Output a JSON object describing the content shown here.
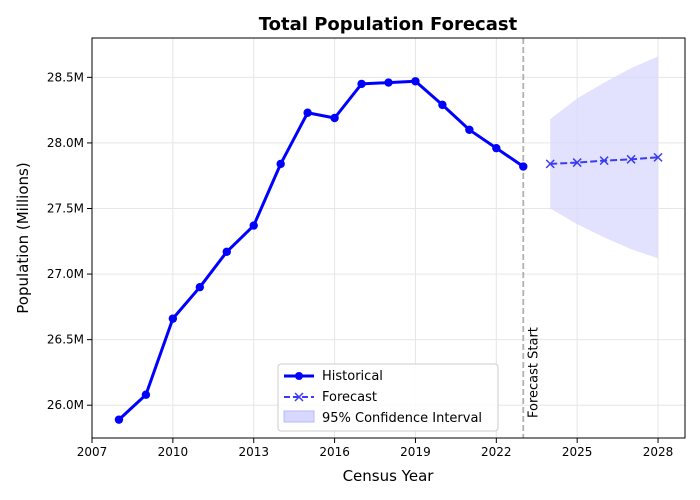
{
  "chart_data": {
    "type": "line",
    "title": "Total Population Forecast",
    "xlabel": "Census Year",
    "ylabel": "Population (Millions)",
    "xlim": [
      2007,
      2029
    ],
    "ylim": [
      25.75,
      28.8
    ],
    "xticks": [
      2007,
      2010,
      2013,
      2016,
      2019,
      2022,
      2025,
      2028
    ],
    "yticks": [
      26.0,
      26.5,
      27.0,
      27.5,
      28.0,
      28.5
    ],
    "ytick_labels": [
      "26.0M",
      "26.5M",
      "27.0M",
      "27.5M",
      "28.0M",
      "28.5M"
    ],
    "grid": true,
    "legend_position": "bottom-center",
    "series": [
      {
        "name": "Historical",
        "style": "solid",
        "marker": "circle",
        "color": "#0000ff",
        "x": [
          2008,
          2009,
          2010,
          2011,
          2012,
          2013,
          2014,
          2015,
          2016,
          2017,
          2018,
          2019,
          2020,
          2021,
          2022,
          2023
        ],
        "y": [
          25.89,
          26.08,
          26.66,
          26.9,
          27.17,
          27.37,
          27.84,
          28.23,
          28.19,
          28.45,
          28.46,
          28.47,
          28.29,
          28.1,
          27.96,
          27.82
        ]
      },
      {
        "name": "Forecast",
        "style": "dashed",
        "marker": "x",
        "color": "#3b3bf0",
        "x": [
          2024,
          2025,
          2026,
          2027,
          2028
        ],
        "y": [
          27.84,
          27.85,
          27.865,
          27.875,
          27.89
        ]
      }
    ],
    "confidence_interval": {
      "name": "95% Confidence Interval",
      "color": "#d8d8ff",
      "x": [
        2024,
        2025,
        2026,
        2027,
        2028
      ],
      "lower": [
        27.5,
        27.38,
        27.28,
        27.19,
        27.12
      ],
      "upper": [
        28.18,
        28.34,
        28.46,
        28.57,
        28.66
      ]
    },
    "annotation": {
      "text": "Forecast Start",
      "x": 2023,
      "color": "#b0b0b0"
    }
  }
}
